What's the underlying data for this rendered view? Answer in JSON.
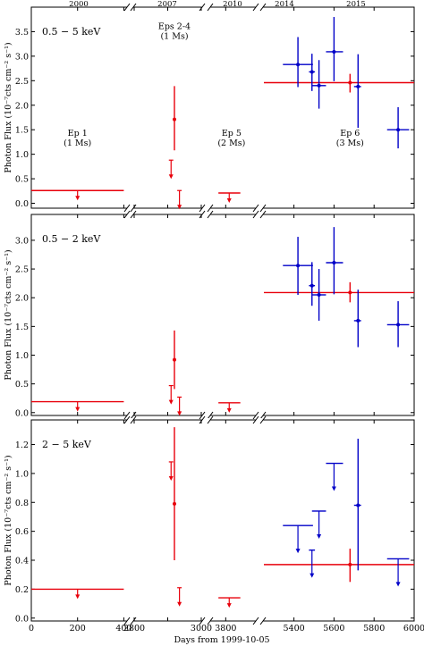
{
  "chart_data": {
    "type": "scatter",
    "x_axis": {
      "label": "Days from 1999-10-05",
      "segments": [
        {
          "range": [
            0,
            410
          ],
          "ticks": [
            0,
            200,
            400
          ],
          "tick_labels": [
            "0",
            "200",
            "400"
          ],
          "year": "2000"
        },
        {
          "range": [
            2800,
            3000
          ],
          "ticks": [
            2800,
            2900,
            3000
          ],
          "tick_labels": [
            "2800",
            "",
            "3000"
          ],
          "year": "2007"
        },
        {
          "range": [
            3750,
            3900
          ],
          "ticks": [
            3800
          ],
          "tick_labels": [
            "3800"
          ],
          "year": "2010"
        },
        {
          "range": [
            5250,
            6000
          ],
          "ticks": [
            5400,
            5600,
            5800,
            6000
          ],
          "tick_labels": [
            "5400",
            "5600",
            "5800",
            "6000"
          ],
          "years": [
            "2014",
            "2015"
          ]
        }
      ]
    },
    "ylabel": "Photon Flux (10⁻⁷cts cm⁻² s⁻¹)",
    "panels": [
      {
        "band": "0.5 − 5 keV",
        "ylim": [
          -0.1,
          4.0
        ],
        "yticks": [
          0.0,
          0.5,
          1.0,
          1.5,
          2.0,
          2.5,
          3.0,
          3.5
        ],
        "ytick_labels": [
          "0.0",
          "0.5",
          "1.0",
          "1.5",
          "2.0",
          "2.5",
          "3.0",
          "3.5"
        ],
        "epoch_labels": [
          {
            "lines": [
              "Ep 1",
              "(1 Ms)"
            ],
            "x": 200,
            "y": 1.38
          },
          {
            "lines": [
              "Eps 2-4",
              "(1 Ms)"
            ],
            "x": 2920,
            "y": 3.55
          },
          {
            "lines": [
              "Ep 5",
              "(2 Ms)"
            ],
            "x": 3820,
            "y": 1.38
          },
          {
            "lines": [
              "Ep 6",
              "(3 Ms)"
            ],
            "x": 5680,
            "y": 1.38
          }
        ],
        "stacked_average": [
          {
            "x1": 0,
            "x2": 400,
            "y": 0.26,
            "arrow_x": 200,
            "color": "#e8000b"
          },
          {
            "x1": 3775,
            "x2": 3850,
            "y": 0.21,
            "arrow_x": 3812,
            "color": "#e8000b"
          },
          {
            "x1": 5250,
            "x2": 6000,
            "y": 2.46,
            "color": "#e8000b"
          }
        ],
        "detections": [
          {
            "x": 2920,
            "y": 1.71,
            "ylo": 1.08,
            "yhi": 2.39,
            "color": "#e8000b"
          },
          {
            "x": 5680,
            "y": 2.46,
            "ylo": 2.26,
            "yhi": 2.64,
            "color": "#e8000b"
          },
          {
            "x": 5420,
            "y": 2.83,
            "xlo": 5345,
            "xhi": 5495,
            "ylo": 2.37,
            "yhi": 3.39,
            "color": "#0000c8"
          },
          {
            "x": 5490,
            "y": 2.68,
            "xlo": 5475,
            "xhi": 5505,
            "ylo": 2.29,
            "yhi": 3.05,
            "color": "#0000c8"
          },
          {
            "x": 5525,
            "y": 2.4,
            "xlo": 5490,
            "xhi": 5560,
            "ylo": 1.93,
            "yhi": 2.92,
            "color": "#0000c8"
          },
          {
            "x": 5600,
            "y": 3.09,
            "xlo": 5560,
            "xhi": 5645,
            "ylo": 2.49,
            "yhi": 3.8,
            "color": "#0000c8"
          },
          {
            "x": 5720,
            "y": 2.38,
            "xlo": 5700,
            "xhi": 5735,
            "ylo": 1.54,
            "yhi": 3.04,
            "color": "#0000c8"
          },
          {
            "x": 5920,
            "y": 1.5,
            "xlo": 5865,
            "xhi": 5975,
            "ylo": 1.12,
            "yhi": 1.96,
            "color": "#0000c8"
          }
        ],
        "upper_limits": [
          {
            "x": 2910,
            "y": 0.88,
            "color": "#e8000b"
          },
          {
            "x": 2935,
            "y": 0.26,
            "color": "#e8000b"
          }
        ]
      },
      {
        "band": "0.5 − 2 keV",
        "ylim": [
          -0.05,
          3.45
        ],
        "yticks": [
          0.0,
          0.5,
          1.0,
          1.5,
          2.0,
          2.5,
          3.0
        ],
        "ytick_labels": [
          "0.0",
          "0.5",
          "1.0",
          "1.5",
          "2.0",
          "2.5",
          "3.0"
        ],
        "epoch_labels": [],
        "stacked_average": [
          {
            "x1": 0,
            "x2": 400,
            "y": 0.19,
            "arrow_x": 200,
            "color": "#e8000b"
          },
          {
            "x1": 3775,
            "x2": 3850,
            "y": 0.17,
            "arrow_x": 3812,
            "color": "#e8000b"
          },
          {
            "x1": 5250,
            "x2": 6000,
            "y": 2.09,
            "color": "#e8000b"
          }
        ],
        "detections": [
          {
            "x": 2920,
            "y": 0.92,
            "ylo": 0.41,
            "yhi": 1.43,
            "color": "#e8000b"
          },
          {
            "x": 5680,
            "y": 2.09,
            "ylo": 1.92,
            "yhi": 2.27,
            "color": "#e8000b"
          },
          {
            "x": 5420,
            "y": 2.56,
            "xlo": 5345,
            "xhi": 5495,
            "ylo": 2.05,
            "yhi": 3.06,
            "color": "#0000c8"
          },
          {
            "x": 5490,
            "y": 2.21,
            "xlo": 5475,
            "xhi": 5505,
            "ylo": 1.86,
            "yhi": 2.62,
            "color": "#0000c8"
          },
          {
            "x": 5525,
            "y": 2.05,
            "xlo": 5490,
            "xhi": 5560,
            "ylo": 1.6,
            "yhi": 2.5,
            "color": "#0000c8"
          },
          {
            "x": 5600,
            "y": 2.61,
            "xlo": 5560,
            "xhi": 5645,
            "ylo": 2.06,
            "yhi": 3.23,
            "color": "#0000c8"
          },
          {
            "x": 5720,
            "y": 1.6,
            "xlo": 5700,
            "xhi": 5735,
            "ylo": 1.14,
            "yhi": 2.14,
            "color": "#0000c8"
          },
          {
            "x": 5920,
            "y": 1.53,
            "xlo": 5865,
            "xhi": 5975,
            "ylo": 1.14,
            "yhi": 1.94,
            "color": "#0000c8"
          }
        ],
        "upper_limits": [
          {
            "x": 2910,
            "y": 0.47,
            "color": "#e8000b"
          },
          {
            "x": 2935,
            "y": 0.27,
            "color": "#e8000b"
          }
        ]
      },
      {
        "band": "2 − 5 keV",
        "ylim": [
          -0.02,
          1.37
        ],
        "yticks": [
          0.0,
          0.2,
          0.4,
          0.6,
          0.8,
          1.0,
          1.2
        ],
        "ytick_labels": [
          "0.0",
          "0.2",
          "0.4",
          "0.6",
          "0.8",
          "1.0",
          "1.2"
        ],
        "epoch_labels": [],
        "stacked_average": [
          {
            "x1": 0,
            "x2": 400,
            "y": 0.2,
            "arrow_x": 200,
            "color": "#e8000b"
          },
          {
            "x1": 3775,
            "x2": 3850,
            "y": 0.14,
            "arrow_x": 3812,
            "color": "#e8000b"
          },
          {
            "x1": 5250,
            "x2": 6000,
            "y": 0.37,
            "color": "#e8000b"
          }
        ],
        "detections": [
          {
            "x": 2920,
            "y": 0.79,
            "ylo": 0.4,
            "yhi": 1.32,
            "color": "#e8000b"
          },
          {
            "x": 5680,
            "y": 0.37,
            "ylo": 0.25,
            "yhi": 0.48,
            "color": "#e8000b"
          },
          {
            "x": 5720,
            "y": 0.78,
            "xlo": 5700,
            "xhi": 5735,
            "ylo": 0.33,
            "yhi": 1.24,
            "color": "#0000c8"
          }
        ],
        "upper_limits": [
          {
            "x": 2910,
            "y": 1.08,
            "color": "#e8000b"
          },
          {
            "x": 2935,
            "y": 0.21,
            "color": "#e8000b"
          },
          {
            "x": 5420,
            "y": 0.64,
            "xlo": 5345,
            "xhi": 5495,
            "color": "#0000c8"
          },
          {
            "x": 5490,
            "y": 0.47,
            "xlo": 5475,
            "xhi": 5505,
            "color": "#0000c8"
          },
          {
            "x": 5525,
            "y": 0.74,
            "xlo": 5490,
            "xhi": 5560,
            "color": "#0000c8"
          },
          {
            "x": 5600,
            "y": 1.07,
            "xlo": 5560,
            "xhi": 5645,
            "color": "#0000c8"
          },
          {
            "x": 5920,
            "y": 0.41,
            "xlo": 5865,
            "xhi": 5975,
            "color": "#0000c8"
          }
        ]
      }
    ]
  }
}
